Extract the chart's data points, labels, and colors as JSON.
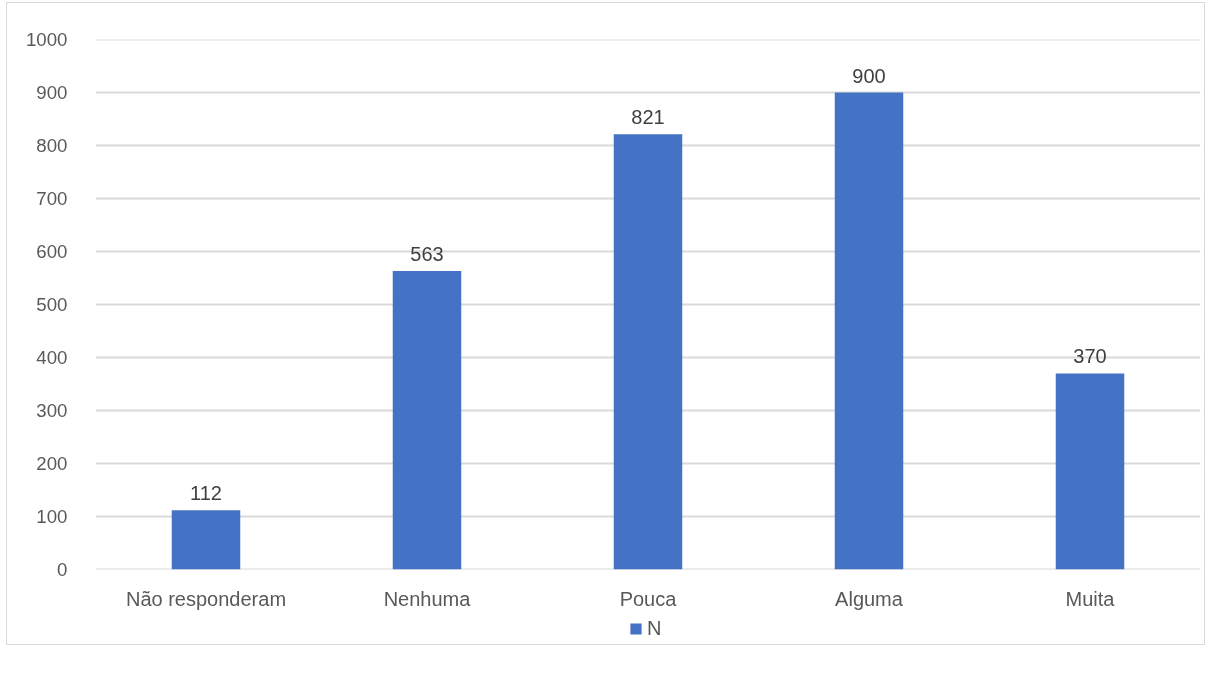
{
  "chart_data": {
    "type": "bar",
    "categories": [
      "Não responderam",
      "Nenhuma",
      "Pouca",
      "Alguma",
      "Muita"
    ],
    "series": [
      {
        "name": "N",
        "color": "#4472c4",
        "values": [
          112,
          563,
          821,
          900,
          370
        ]
      }
    ],
    "ylim": [
      0,
      1000
    ],
    "yticks": [
      0,
      100,
      200,
      300,
      400,
      500,
      600,
      700,
      800,
      900,
      1000
    ],
    "grid": "y",
    "legend": "bottom",
    "data_labels": true
  }
}
